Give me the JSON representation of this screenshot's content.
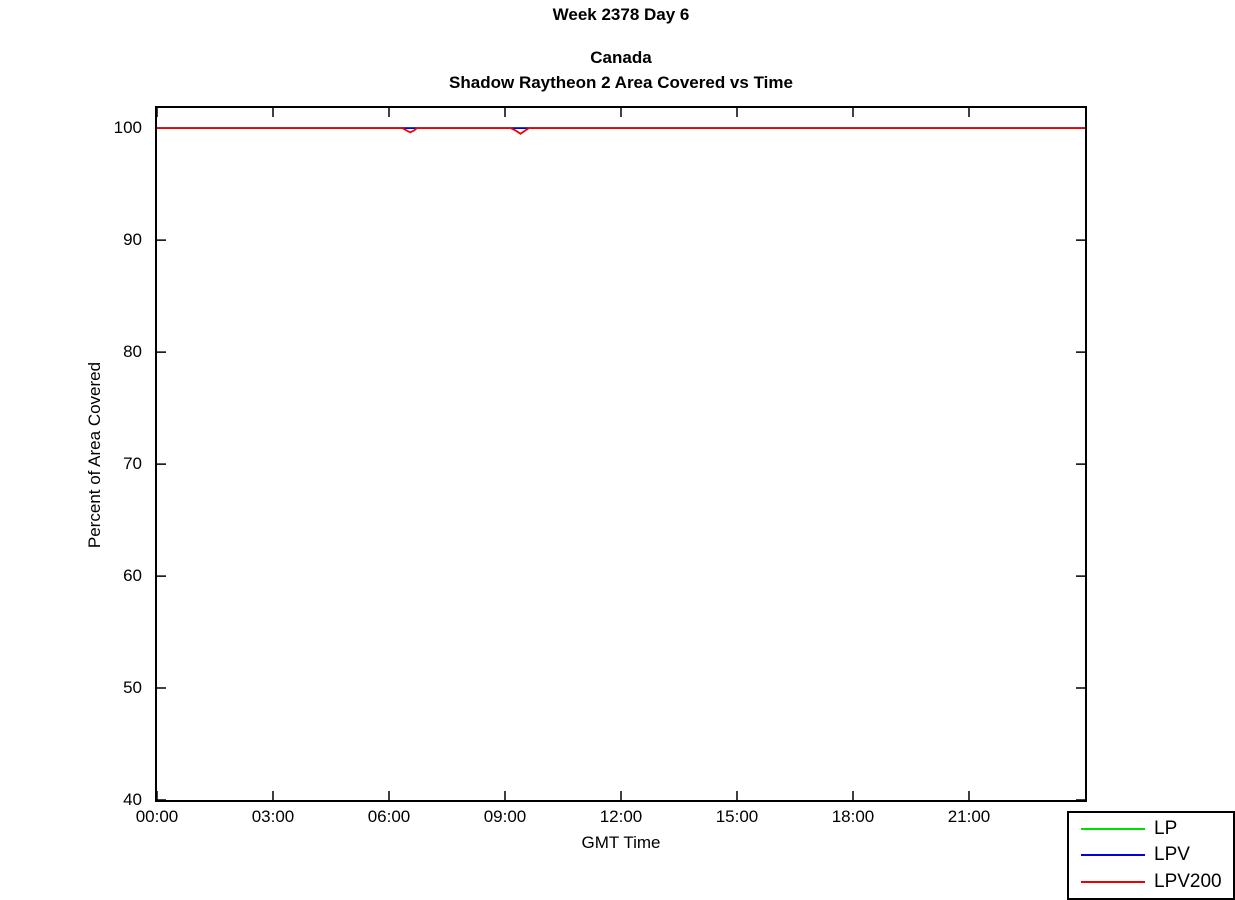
{
  "figure": {
    "page_title": "Week 2378 Day 6"
  },
  "chart_data": {
    "type": "line",
    "title": "Week 2378 Day 6",
    "subtitles": [
      "Canada",
      "Shadow Raytheon 2 Area Covered vs Time"
    ],
    "xlabel": "GMT Time",
    "ylabel": "Percent of Area Covered",
    "xlim": [
      0,
      24
    ],
    "ylim": [
      40,
      101.8
    ],
    "grid": false,
    "axis_color": "#000000",
    "background": "#ffffff",
    "legend_position": "bottom-right",
    "tick_style": "inward-mirrored-all-sides",
    "xticks": {
      "values": [
        0,
        3,
        6,
        9,
        12,
        15,
        18,
        21
      ],
      "labels": [
        "00:00",
        "03:00",
        "06:00",
        "09:00",
        "12:00",
        "15:00",
        "18:00",
        "21:00"
      ]
    },
    "yticks": {
      "values": [
        40,
        50,
        60,
        70,
        80,
        90,
        100
      ],
      "labels": [
        "40",
        "50",
        "60",
        "70",
        "80",
        "90",
        "100"
      ]
    },
    "series": [
      {
        "name": "LP",
        "color": "#00dd00",
        "x": [
          0,
          24
        ],
        "y": [
          100,
          100
        ]
      },
      {
        "name": "LPV",
        "color": "#0000dd",
        "x": [
          0,
          24
        ],
        "y": [
          100,
          100
        ]
      },
      {
        "name": "LPV200",
        "color": "#ee0000",
        "x": [
          0,
          6.35,
          6.45,
          6.55,
          6.65,
          6.72,
          9.15,
          9.28,
          9.4,
          9.52,
          9.62,
          24
        ],
        "y": [
          100,
          100,
          99.8,
          99.62,
          99.8,
          100,
          100,
          99.78,
          99.5,
          99.78,
          100,
          100
        ]
      }
    ],
    "notes": "All series flat at 100%; LPV200 shows two brief dips (~06:33 to ~99.6%, ~09:22 to ~99.5%) where the LPV line at 100% becomes visible."
  }
}
